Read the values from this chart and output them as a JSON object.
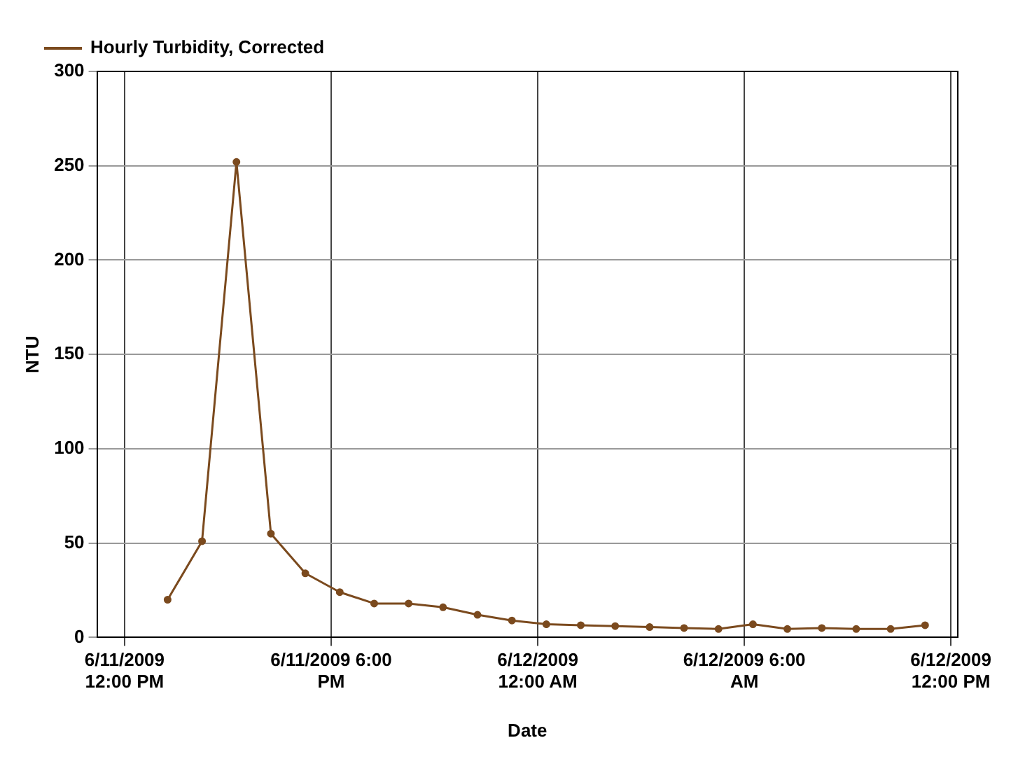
{
  "chart_data": {
    "type": "line",
    "xlabel": "Date",
    "ylabel": "NTU",
    "x": [
      "2009-06-11T13:15",
      "2009-06-11T14:15",
      "2009-06-11T15:15",
      "2009-06-11T16:15",
      "2009-06-11T17:15",
      "2009-06-11T18:15",
      "2009-06-11T19:15",
      "2009-06-11T20:15",
      "2009-06-11T21:15",
      "2009-06-11T22:15",
      "2009-06-11T23:15",
      "2009-06-12T00:15",
      "2009-06-12T01:15",
      "2009-06-12T02:15",
      "2009-06-12T03:15",
      "2009-06-12T04:15",
      "2009-06-12T05:15",
      "2009-06-12T06:15",
      "2009-06-12T07:15",
      "2009-06-12T08:15",
      "2009-06-12T09:15",
      "2009-06-12T10:15",
      "2009-06-12T11:15"
    ],
    "series": [
      {
        "name": "Hourly Turbidity, Corrected",
        "color": "#7b4a1e",
        "values": [
          20,
          51,
          252,
          55,
          34,
          24,
          18,
          18,
          16,
          12,
          9,
          7,
          6.5,
          6,
          5.5,
          5,
          4.5,
          7,
          4.5,
          5,
          4.5,
          4.5,
          6.5
        ]
      }
    ],
    "xlim": [
      "2009-06-11T11:12",
      "2009-06-12T12:12"
    ],
    "xticks": [
      {
        "value": "2009-06-11T12:00",
        "label": "6/11/2009\n12:00 PM"
      },
      {
        "value": "2009-06-11T18:00",
        "label": "6/11/2009 6:00\nPM"
      },
      {
        "value": "2009-06-12T00:00",
        "label": "6/12/2009\n12:00 AM"
      },
      {
        "value": "2009-06-12T06:00",
        "label": "6/12/2009 6:00\nAM"
      },
      {
        "value": "2009-06-12T12:00",
        "label": "6/12/2009\n12:00 PM"
      }
    ],
    "ylim": [
      0,
      300
    ],
    "yticks": [
      0,
      50,
      100,
      150,
      200,
      250,
      300
    ],
    "grid": true,
    "legend": "top left",
    "marker": "circle",
    "line_style": "solid"
  }
}
